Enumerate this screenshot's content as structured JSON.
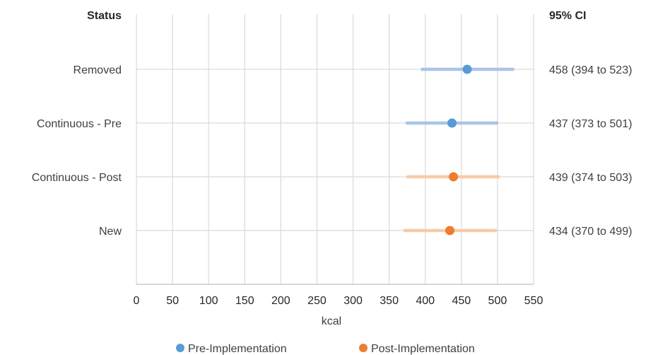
{
  "chart_data": {
    "type": "scatter",
    "xlabel": "kcal",
    "xlim": [
      0,
      550
    ],
    "x_ticks": [
      0,
      50,
      100,
      150,
      200,
      250,
      300,
      350,
      400,
      450,
      500,
      550
    ],
    "grid": "vertical",
    "legend_placement": "bottom",
    "category_header": "Status",
    "ci_header": "95% CI",
    "categories": [
      "Removed",
      "Continuous - Pre",
      "Continuous - Post",
      "New"
    ],
    "series": [
      {
        "name": "Pre-Implementation",
        "color": "#5b9bd5",
        "ci_color": "#a9c4ea"
      },
      {
        "name": "Post-Implementation",
        "color": "#ed7d31",
        "ci_color": "#f8cba6"
      }
    ],
    "points": [
      {
        "category": "Removed",
        "series": 0,
        "value": 458,
        "lower": 394,
        "upper": 523,
        "ci_label": "458 (394 to 523)"
      },
      {
        "category": "Continuous - Pre",
        "series": 0,
        "value": 437,
        "lower": 373,
        "upper": 501,
        "ci_label": "437 (373 to 501)"
      },
      {
        "category": "Continuous - Post",
        "series": 1,
        "value": 439,
        "lower": 374,
        "upper": 503,
        "ci_label": "439 (374 to 503)"
      },
      {
        "category": "New",
        "series": 1,
        "value": 434,
        "lower": 370,
        "upper": 499,
        "ci_label": "434 (370 to 499)"
      }
    ]
  }
}
